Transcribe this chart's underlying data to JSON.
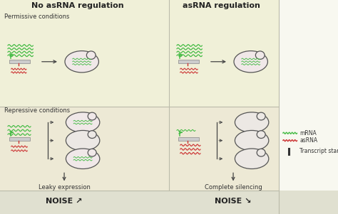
{
  "title_left": "No asRNA regulation",
  "title_right": "asRNA regulation",
  "section1_label": "Permissive conditions",
  "section2_label": "Repressive conditions",
  "outcome_left": "Leaky expression",
  "outcome_right": "Complete silencing",
  "noise_left": "NOISE ↗",
  "noise_right": "NOISE ↘",
  "legend_mrna": "mRNA",
  "legend_asrna": "asRNA",
  "legend_tss": "Transcript start site",
  "bg_top": "#f0f0d8",
  "bg_bottom": "#e0e0d0",
  "bg_repressive": "#ede9d5",
  "cell_fill_active": "#f0e8e8",
  "cell_fill_empty": "#ece8e4",
  "mrna_color": "#44bb44",
  "asrna_color": "#cc3333",
  "arrow_color": "#444444",
  "tss_green": "#33aa33",
  "divider_color": "#bbbbaa",
  "gene_fill": "#cccccc",
  "gene_edge": "#888888",
  "cell_edge": "#555555",
  "text_color": "#222222",
  "label_color": "#333333"
}
